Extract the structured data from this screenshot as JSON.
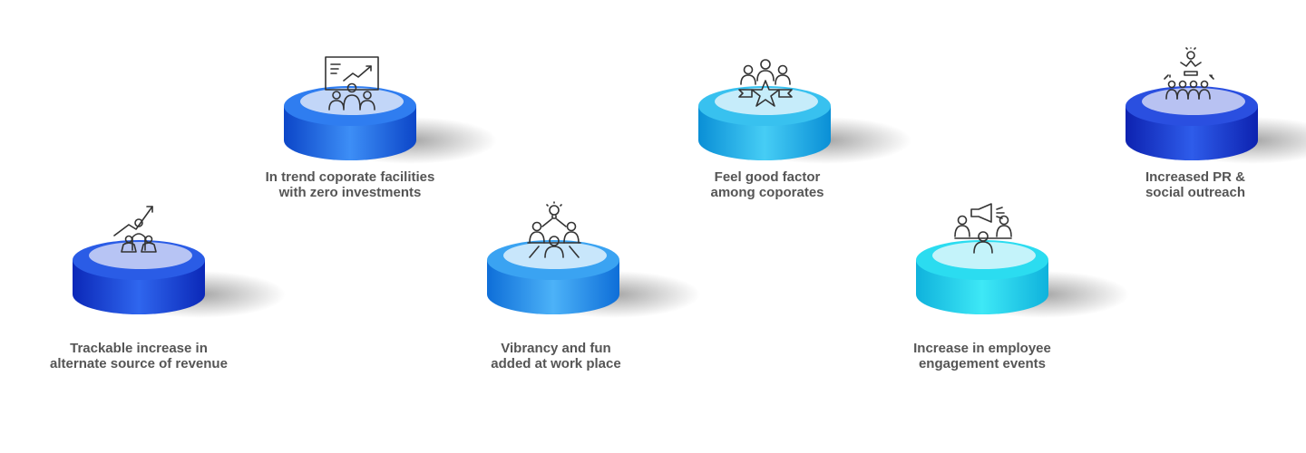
{
  "benefits": [
    {
      "line1": "Trackable increase in",
      "line2": "alternate source of revenue",
      "icon": "growth-arrow-team-icon",
      "colors": {
        "top": "#2a5ce6",
        "side_dark": "#0b28b8",
        "side_light": "#2f66ee",
        "disc": "#b7c4f4"
      }
    },
    {
      "line1": "In trend coporate facilities",
      "line2": "with zero investments",
      "icon": "presentation-board-icon",
      "colors": {
        "top": "#2f7df0",
        "side_dark": "#0c46c8",
        "side_light": "#3d8ef6",
        "disc": "#c2d6f8"
      }
    },
    {
      "line1": "Vibrancy and fun",
      "line2": "added at work place",
      "icon": "team-meeting-idea-icon",
      "colors": {
        "top": "#3aa3f2",
        "side_dark": "#0e6ed8",
        "side_light": "#4cb2f8",
        "disc": "#c8e6fb"
      }
    },
    {
      "line1": "Feel good factor",
      "line2": "among coporates",
      "icon": "team-star-icon",
      "colors": {
        "top": "#38c1ef",
        "side_dark": "#0a8fd6",
        "side_light": "#46cdf5",
        "disc": "#c6ecfa"
      }
    },
    {
      "line1": "Increase in employee",
      "line2": "engagement events",
      "icon": "megaphone-meeting-icon",
      "colors": {
        "top": "#2bdcf0",
        "side_dark": "#0fb2dc",
        "side_light": "#3ee8f6",
        "disc": "#c4f3fa"
      }
    },
    {
      "line1": "Increased PR &",
      "line2": "social outreach",
      "icon": "speaker-audience-icon",
      "colors": {
        "top": "#2a4fe0",
        "side_dark": "#0d22b0",
        "side_light": "#2e5cea",
        "disc": "#b8c2f2"
      }
    }
  ]
}
